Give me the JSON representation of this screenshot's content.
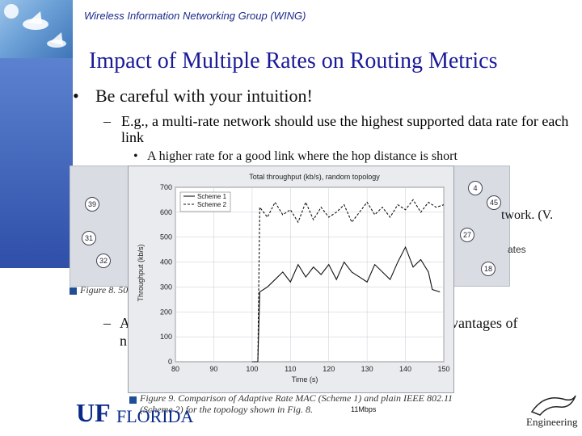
{
  "header": {
    "group_name": "Wireless Information Networking Group (WING)",
    "title": "Impact of Multiple Rates on Routing Metrics"
  },
  "bullets": {
    "level1": "Be careful with your intuition!",
    "level2": "E.g., a  multi-rate network should use the highest supported data rate for each link",
    "level3": "A higher rate for a good link where the hop distance is short"
  },
  "occluded_fragments": {
    "network": "twork. (V.",
    "ates": "ates",
    "vantages": "vantages of",
    "dash": "–",
    "a": "A",
    "n": "n"
  },
  "figure8": {
    "caption": "Figure 8. 50",
    "nodes": [
      "39",
      "31",
      "32",
      "4",
      "45",
      "27",
      "18"
    ]
  },
  "figure9": {
    "caption": "Figure 9. Comparison of Adaptive Rate MAC (Scheme 1) and plain IEEE 802.11 (Scheme 2) for the topology shown in Fig. 8."
  },
  "rate_note": "11Mbps",
  "footer": {
    "uf_text": "UF",
    "florida_text": "FLORIDA",
    "engineering_text": "Engineering"
  },
  "chart_data": {
    "type": "line",
    "title": "Total throughput (kb/s), random topology",
    "xlabel": "Time (s)",
    "ylabel": "Throughput (kb/s)",
    "xlim": [
      80,
      150
    ],
    "ylim": [
      0,
      700
    ],
    "xticks": [
      80,
      90,
      100,
      110,
      120,
      130,
      140,
      150
    ],
    "yticks": [
      0,
      100,
      200,
      300,
      400,
      500,
      600,
      700
    ],
    "legend": "top-left",
    "series": [
      {
        "name": "Scheme 1",
        "style": "solid",
        "x": [
          100,
          101.5,
          102,
          104,
          106,
          108,
          110,
          112,
          114,
          116,
          118,
          120,
          122,
          124,
          126,
          128,
          130,
          132,
          134,
          136,
          138,
          140,
          142,
          144,
          146,
          147,
          149
        ],
        "y": [
          0,
          0,
          280,
          300,
          330,
          360,
          320,
          390,
          340,
          380,
          350,
          390,
          330,
          400,
          360,
          340,
          320,
          390,
          360,
          330,
          400,
          460,
          380,
          410,
          360,
          290,
          280
        ]
      },
      {
        "name": "Scheme 2",
        "style": "dashed",
        "x": [
          100,
          101.5,
          102,
          104,
          106,
          108,
          110,
          112,
          114,
          116,
          118,
          120,
          122,
          124,
          126,
          128,
          130,
          132,
          134,
          136,
          138,
          140,
          142,
          144,
          146,
          148,
          150
        ],
        "y": [
          0,
          0,
          620,
          580,
          640,
          590,
          610,
          560,
          640,
          570,
          620,
          580,
          600,
          630,
          560,
          600,
          640,
          590,
          620,
          580,
          630,
          610,
          650,
          600,
          640,
          620,
          630
        ]
      }
    ]
  }
}
